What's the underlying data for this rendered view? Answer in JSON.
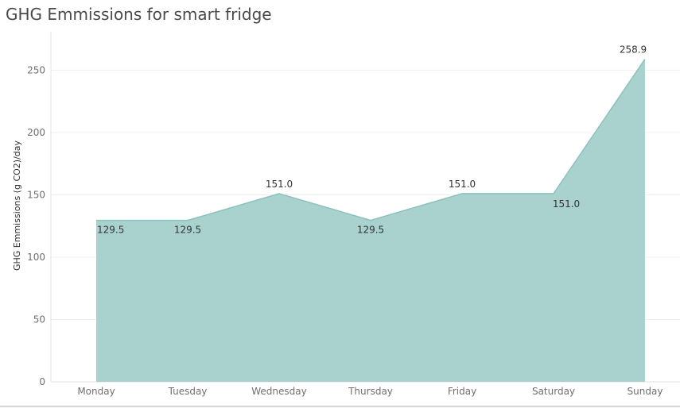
{
  "chart_data": {
    "type": "area",
    "title": "GHG Emmissions for smart fridge",
    "xlabel": "",
    "ylabel": "GHG Emmissions (g CO2)/day",
    "categories": [
      "Monday",
      "Tuesday",
      "Wednesday",
      "Thursday",
      "Friday",
      "Saturday",
      "Sunday"
    ],
    "series": [
      {
        "values": [
          129.5,
          129.5,
          151.0,
          129.5,
          151.0,
          151.0,
          258.9
        ]
      }
    ],
    "data_labels": [
      "129.5",
      "129.5",
      "151.0",
      "129.5",
      "151.0",
      "151.0",
      "258.9"
    ],
    "yticks": [
      0,
      50,
      100,
      150,
      200,
      250
    ],
    "ylim": [
      0,
      270
    ],
    "grid": true,
    "legend": "none",
    "colors": {
      "area_fill": "#a9d1cd",
      "area_stroke": "#8cc2bc",
      "grid": "#efefef"
    }
  }
}
